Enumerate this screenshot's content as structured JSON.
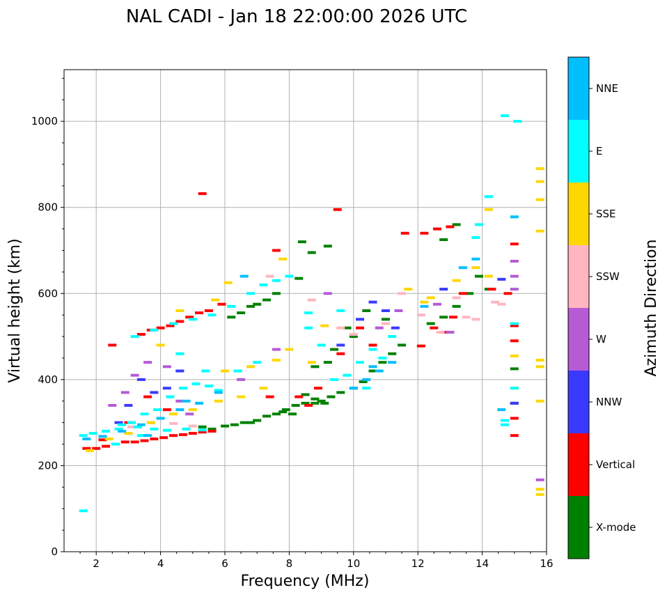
{
  "chart_data": {
    "type": "scatter",
    "title": "NAL CADI - Jan 18 22:00:00 2026 UTC",
    "xlabel": "Frequency (MHz)",
    "ylabel": "Virtual height (km)",
    "xlim": [
      1,
      16
    ],
    "ylim": [
      0,
      1120
    ],
    "xticks": [
      2,
      4,
      6,
      8,
      10,
      12,
      14,
      16
    ],
    "yticks": [
      0,
      200,
      400,
      600,
      800,
      1000
    ],
    "grid": true,
    "colorbar": {
      "label": "Azimuth Direction",
      "categories": [
        {
          "name": "X-mode",
          "color": "#008000"
        },
        {
          "name": "Vertical",
          "color": "#ff0000"
        },
        {
          "name": "NNW",
          "color": "#3a3aff"
        },
        {
          "name": "W",
          "color": "#b65ad6"
        },
        {
          "name": "SSW",
          "color": "#ffb6c1"
        },
        {
          "name": "SSE",
          "color": "#ffd700"
        },
        {
          "name": "E",
          "color": "#00ffff"
        },
        {
          "name": "NNE",
          "color": "#00bfff"
        }
      ]
    },
    "series": [
      {
        "name": "X-mode",
        "points": [
          [
            5.3,
            290
          ],
          [
            5.6,
            285
          ],
          [
            6.0,
            292
          ],
          [
            6.3,
            295
          ],
          [
            6.6,
            300
          ],
          [
            7.0,
            305
          ],
          [
            7.3,
            315
          ],
          [
            7.6,
            320
          ],
          [
            7.9,
            330
          ],
          [
            8.2,
            340
          ],
          [
            8.5,
            345
          ],
          [
            8.8,
            345
          ],
          [
            9.0,
            350
          ],
          [
            9.3,
            360
          ],
          [
            9.6,
            370
          ],
          [
            10.0,
            380
          ],
          [
            10.3,
            395
          ],
          [
            10.6,
            420
          ],
          [
            10.9,
            440
          ],
          [
            11.2,
            460
          ],
          [
            11.5,
            480
          ],
          [
            8.5,
            365
          ],
          [
            8.8,
            355
          ],
          [
            9.1,
            345
          ],
          [
            7.8,
            325
          ],
          [
            8.1,
            320
          ],
          [
            6.8,
            300
          ],
          [
            6.2,
            545
          ],
          [
            6.5,
            555
          ],
          [
            6.8,
            570
          ],
          [
            7.0,
            575
          ],
          [
            7.3,
            585
          ],
          [
            7.6,
            600
          ],
          [
            8.3,
            635
          ],
          [
            8.7,
            695
          ],
          [
            9.2,
            710
          ],
          [
            12.4,
            530
          ],
          [
            12.8,
            545
          ],
          [
            13.2,
            570
          ],
          [
            13.6,
            600
          ],
          [
            13.9,
            640
          ],
          [
            14.2,
            610
          ],
          [
            15.0,
            425
          ],
          [
            15.0,
            345
          ],
          [
            13.2,
            760
          ],
          [
            12.8,
            725
          ],
          [
            9.4,
            470
          ],
          [
            9.8,
            520
          ],
          [
            10.4,
            560
          ],
          [
            11.0,
            540
          ],
          [
            8.8,
            430
          ],
          [
            9.2,
            440
          ],
          [
            10.0,
            500
          ],
          [
            8.4,
            720
          ]
        ]
      },
      {
        "name": "Vertical",
        "points": [
          [
            1.7,
            240
          ],
          [
            2.0,
            240
          ],
          [
            2.3,
            245
          ],
          [
            2.6,
            250
          ],
          [
            2.9,
            255
          ],
          [
            3.2,
            255
          ],
          [
            3.5,
            258
          ],
          [
            3.8,
            262
          ],
          [
            4.1,
            265
          ],
          [
            4.4,
            270
          ],
          [
            4.7,
            272
          ],
          [
            5.0,
            275
          ],
          [
            5.3,
            278
          ],
          [
            5.6,
            280
          ],
          [
            3.4,
            505
          ],
          [
            3.7,
            515
          ],
          [
            4.0,
            520
          ],
          [
            4.3,
            525
          ],
          [
            4.6,
            535
          ],
          [
            4.9,
            545
          ],
          [
            5.2,
            555
          ],
          [
            5.5,
            560
          ],
          [
            5.9,
            575
          ],
          [
            2.5,
            480
          ],
          [
            5.3,
            832
          ],
          [
            9.5,
            795
          ],
          [
            7.6,
            700
          ],
          [
            8.3,
            360
          ],
          [
            8.6,
            340
          ],
          [
            11.6,
            740
          ],
          [
            12.2,
            740
          ],
          [
            12.6,
            750
          ],
          [
            13.0,
            755
          ],
          [
            13.4,
            600
          ],
          [
            12.5,
            520
          ],
          [
            12.8,
            510
          ],
          [
            13.1,
            545
          ],
          [
            12.1,
            478
          ],
          [
            15.0,
            715
          ],
          [
            15.0,
            525
          ],
          [
            15.0,
            490
          ],
          [
            15.0,
            270
          ],
          [
            15.0,
            310
          ],
          [
            14.8,
            600
          ],
          [
            14.3,
            610
          ],
          [
            10.6,
            480
          ],
          [
            10.2,
            520
          ],
          [
            9.6,
            460
          ],
          [
            3.0,
            300
          ],
          [
            3.6,
            360
          ],
          [
            4.2,
            330
          ],
          [
            2.2,
            260
          ],
          [
            8.9,
            380
          ],
          [
            7.4,
            360
          ]
        ]
      },
      {
        "name": "NNW",
        "points": [
          [
            3.4,
            400
          ],
          [
            3.8,
            370
          ],
          [
            4.2,
            380
          ],
          [
            4.6,
            420
          ],
          [
            10.6,
            580
          ],
          [
            11.0,
            560
          ],
          [
            11.3,
            520
          ],
          [
            9.6,
            480
          ],
          [
            14.6,
            633
          ],
          [
            15.0,
            345
          ],
          [
            10.2,
            540
          ],
          [
            12.8,
            610
          ],
          [
            3.0,
            340
          ],
          [
            2.7,
            300
          ]
        ]
      },
      {
        "name": "W",
        "points": [
          [
            2.5,
            340
          ],
          [
            2.9,
            370
          ],
          [
            3.2,
            410
          ],
          [
            3.6,
            440
          ],
          [
            4.2,
            430
          ],
          [
            4.6,
            350
          ],
          [
            4.9,
            320
          ],
          [
            15.0,
            675
          ],
          [
            15.0,
            640
          ],
          [
            15.0,
            610
          ],
          [
            15.8,
            167
          ],
          [
            13.0,
            510
          ],
          [
            12.6,
            575
          ],
          [
            10.8,
            520
          ],
          [
            11.4,
            560
          ],
          [
            9.2,
            600
          ],
          [
            6.5,
            400
          ],
          [
            7.6,
            470
          ]
        ]
      },
      {
        "name": "SSW",
        "points": [
          [
            3.1,
            290
          ],
          [
            3.7,
            300
          ],
          [
            4.4,
            298
          ],
          [
            5.0,
            292
          ],
          [
            14.4,
            580
          ],
          [
            14.6,
            575
          ],
          [
            13.8,
            540
          ],
          [
            12.7,
            510
          ],
          [
            12.1,
            550
          ],
          [
            13.5,
            545
          ],
          [
            9.6,
            520
          ],
          [
            10.0,
            505
          ],
          [
            8.7,
            585
          ],
          [
            7.4,
            640
          ],
          [
            11.0,
            530
          ],
          [
            11.5,
            600
          ],
          [
            13.2,
            590
          ]
        ]
      },
      {
        "name": "SSE",
        "points": [
          [
            1.8,
            235
          ],
          [
            2.4,
            262
          ],
          [
            3.0,
            275
          ],
          [
            3.7,
            300
          ],
          [
            4.4,
            320
          ],
          [
            5.0,
            330
          ],
          [
            5.8,
            350
          ],
          [
            6.5,
            360
          ],
          [
            7.2,
            380
          ],
          [
            8.0,
            470
          ],
          [
            7.6,
            445
          ],
          [
            6.8,
            430
          ],
          [
            6.0,
            420
          ],
          [
            15.8,
            890
          ],
          [
            15.8,
            860
          ],
          [
            15.8,
            818
          ],
          [
            15.8,
            745
          ],
          [
            15.8,
            445
          ],
          [
            15.8,
            430
          ],
          [
            15.8,
            350
          ],
          [
            15.8,
            145
          ],
          [
            15.8,
            133
          ],
          [
            14.2,
            795
          ],
          [
            13.8,
            660
          ],
          [
            13.2,
            630
          ],
          [
            12.4,
            590
          ],
          [
            15.0,
            380
          ],
          [
            15.0,
            455
          ],
          [
            14.2,
            640
          ],
          [
            6.1,
            625
          ],
          [
            5.7,
            585
          ],
          [
            7.8,
            680
          ],
          [
            9.1,
            525
          ],
          [
            8.7,
            440
          ],
          [
            12.2,
            580
          ],
          [
            11.7,
            610
          ],
          [
            4.6,
            560
          ],
          [
            4.0,
            480
          ]
        ]
      },
      {
        "name": "E",
        "points": [
          [
            1.6,
            270
          ],
          [
            1.9,
            275
          ],
          [
            2.3,
            280
          ],
          [
            2.7,
            285
          ],
          [
            3.1,
            300
          ],
          [
            3.5,
            320
          ],
          [
            3.9,
            330
          ],
          [
            4.3,
            360
          ],
          [
            4.7,
            380
          ],
          [
            5.1,
            390
          ],
          [
            5.5,
            385
          ],
          [
            5.8,
            375
          ],
          [
            2.8,
            295
          ],
          [
            3.3,
            290
          ],
          [
            3.8,
            285
          ],
          [
            4.2,
            282
          ],
          [
            4.8,
            285
          ],
          [
            5.3,
            283
          ],
          [
            3.2,
            500
          ],
          [
            3.8,
            515
          ],
          [
            4.4,
            530
          ],
          [
            5.0,
            540
          ],
          [
            5.6,
            550
          ],
          [
            6.2,
            570
          ],
          [
            6.8,
            600
          ],
          [
            7.2,
            620
          ],
          [
            7.6,
            630
          ],
          [
            8.0,
            640
          ],
          [
            1.6,
            95
          ],
          [
            14.7,
            1013
          ],
          [
            15.1,
            1000
          ],
          [
            14.2,
            825
          ],
          [
            13.8,
            730
          ],
          [
            13.9,
            760
          ],
          [
            15.0,
            530
          ],
          [
            15.0,
            380
          ],
          [
            14.7,
            305
          ],
          [
            14.7,
            295
          ],
          [
            9.4,
            400
          ],
          [
            9.8,
            410
          ],
          [
            10.2,
            440
          ],
          [
            10.6,
            470
          ],
          [
            10.9,
            450
          ],
          [
            11.2,
            500
          ],
          [
            9.6,
            560
          ],
          [
            8.6,
            520
          ],
          [
            8.6,
            555
          ],
          [
            6.4,
            420
          ],
          [
            7.0,
            440
          ],
          [
            5.4,
            420
          ],
          [
            2.6,
            250
          ],
          [
            3.4,
            270
          ],
          [
            9.0,
            480
          ],
          [
            10.4,
            380
          ],
          [
            4.6,
            460
          ]
        ]
      },
      {
        "name": "NNE",
        "points": [
          [
            1.7,
            262
          ],
          [
            2.2,
            268
          ],
          [
            2.8,
            280
          ],
          [
            3.4,
            295
          ],
          [
            4.0,
            310
          ],
          [
            4.6,
            330
          ],
          [
            5.2,
            345
          ],
          [
            5.8,
            370
          ],
          [
            10.0,
            380
          ],
          [
            10.4,
            400
          ],
          [
            10.8,
            420
          ],
          [
            11.2,
            440
          ],
          [
            13.4,
            660
          ],
          [
            13.8,
            680
          ],
          [
            15.0,
            778
          ],
          [
            14.6,
            330
          ],
          [
            4.8,
            350
          ],
          [
            3.6,
            270
          ],
          [
            10.6,
            430
          ],
          [
            6.6,
            640
          ],
          [
            12.2,
            570
          ]
        ]
      }
    ]
  }
}
